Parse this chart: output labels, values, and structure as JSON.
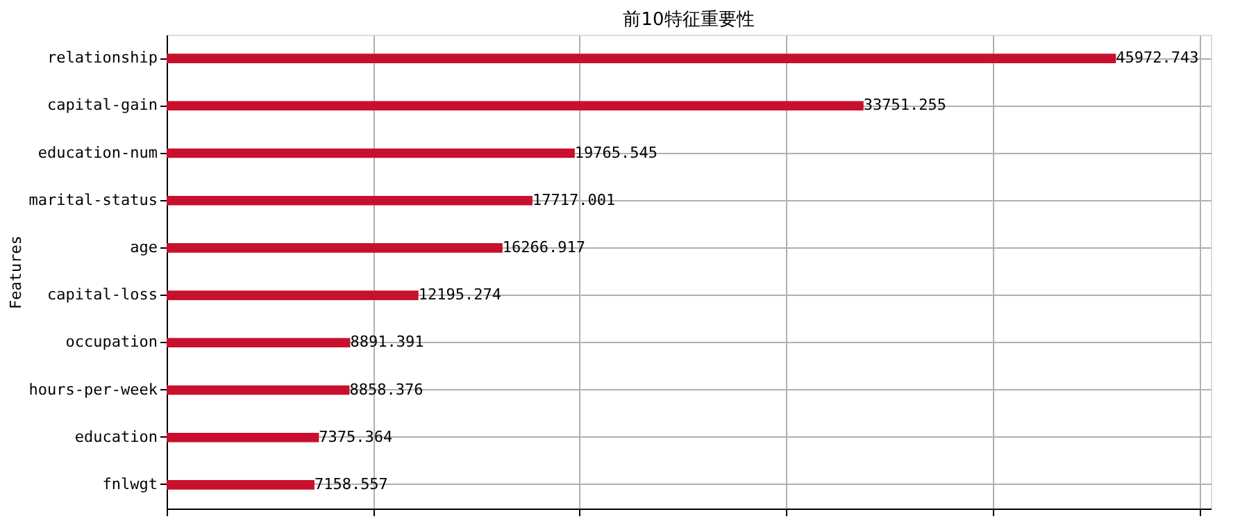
{
  "chart_data": {
    "type": "bar",
    "orientation": "horizontal",
    "title": "前10特征重要性",
    "ylabel": "Features",
    "categories": [
      "relationship",
      "capital-gain",
      "education-num",
      "marital-status",
      "age",
      "capital-loss",
      "occupation",
      "hours-per-week",
      "education",
      "fnlwgt"
    ],
    "values": [
      45972.743,
      33751.255,
      19765.545,
      17717.001,
      16266.917,
      12195.274,
      8891.391,
      8858.376,
      7375.364,
      7158.557
    ],
    "color": "#c8102e",
    "xlim": [
      0,
      50570
    ],
    "xticks": [
      {
        "value": 0,
        "label": null
      },
      {
        "value": 10000,
        "label": null
      },
      {
        "value": 20000,
        "label": null
      },
      {
        "value": 30000,
        "label": null
      },
      {
        "value": 40000,
        "label": null
      },
      {
        "value": 50000,
        "label": null
      }
    ],
    "tick_labels": "y",
    "grid": true,
    "data_labels": true
  }
}
